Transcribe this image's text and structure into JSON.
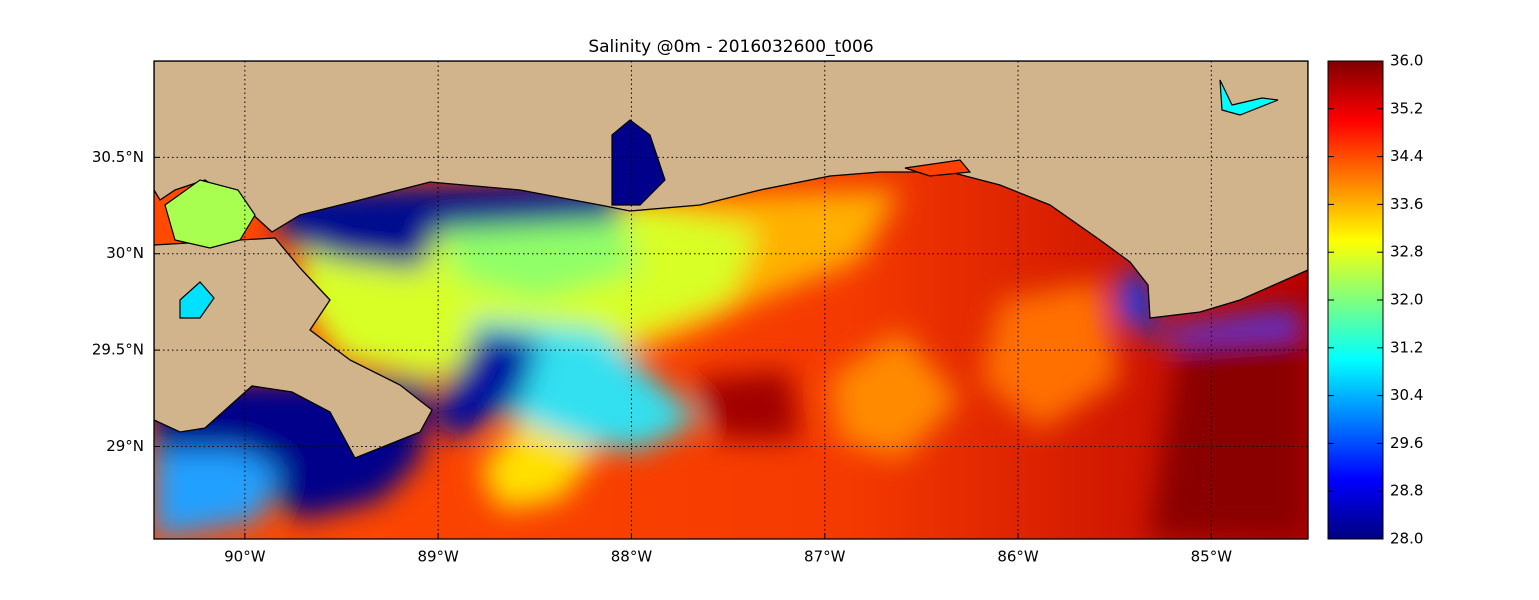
{
  "title": "Salinity @0m - 2016032600_t006",
  "map": {
    "xlim": [
      -90.47,
      -84.5
    ],
    "ylim": [
      28.52,
      31.0
    ],
    "grid": true,
    "xticks": [
      {
        "value": -90,
        "label": "90°W"
      },
      {
        "value": -89,
        "label": "89°W"
      },
      {
        "value": -88,
        "label": "88°W"
      },
      {
        "value": -87,
        "label": "87°W"
      },
      {
        "value": -86,
        "label": "86°W"
      },
      {
        "value": -85,
        "label": "85°W"
      }
    ],
    "yticks": [
      {
        "value": 29,
        "label": "29°N"
      },
      {
        "value": 29.5,
        "label": "29.5°N"
      },
      {
        "value": 30,
        "label": "30°N"
      },
      {
        "value": 30.5,
        "label": "30.5°N"
      }
    ]
  },
  "colorbar": {
    "lim": [
      28,
      36
    ],
    "ticks": [
      {
        "value": 28,
        "label": "28.0"
      },
      28.8,
      29.6,
      30.4,
      31.2,
      {
        "value": 32,
        "label": "32.0"
      },
      32.8,
      33.6,
      34.4,
      35.2,
      {
        "value": 36,
        "label": "36.0"
      }
    ]
  }
}
